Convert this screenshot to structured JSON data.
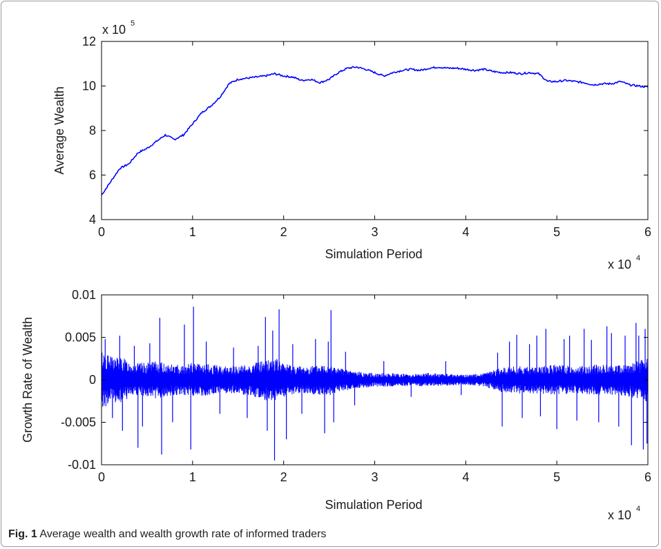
{
  "caption": {
    "label": "Fig. 1",
    "text": "Average wealth and wealth growth rate of informed traders"
  },
  "colors": {
    "line": "#0000ff",
    "axis": "#000000",
    "frame": "#9a9a9a"
  },
  "chart_data": [
    {
      "type": "line",
      "title": "",
      "xlabel": "Simulation Period",
      "ylabel": "Average Wealth",
      "x_multiplier": {
        "base": "x 10",
        "exponent": "4"
      },
      "y_multiplier": {
        "base": "x 10",
        "exponent": "5"
      },
      "xlim": [
        0,
        6
      ],
      "ylim": [
        4,
        12
      ],
      "x_ticks": [
        "0",
        "1",
        "2",
        "3",
        "4",
        "5",
        "6"
      ],
      "y_ticks": [
        "4",
        "6",
        "8",
        "10",
        "12"
      ],
      "grid": false,
      "series": [
        {
          "x": [
            0,
            0.1,
            0.2,
            0.3,
            0.4,
            0.5,
            0.6,
            0.7,
            0.8,
            0.9,
            1.0,
            1.1,
            1.2,
            1.3,
            1.4,
            1.5,
            1.6,
            1.7,
            1.8,
            1.9,
            2.0,
            2.1,
            2.2,
            2.3,
            2.4,
            2.5,
            2.6,
            2.7,
            2.8,
            2.9,
            3.0,
            3.1,
            3.2,
            3.3,
            3.4,
            3.5,
            3.6,
            3.7,
            3.8,
            3.9,
            4.0,
            4.1,
            4.2,
            4.3,
            4.4,
            4.5,
            4.6,
            4.7,
            4.8,
            4.9,
            5.0,
            5.1,
            5.2,
            5.3,
            5.4,
            5.5,
            5.6,
            5.7,
            5.8,
            5.9,
            6.0
          ],
          "y": [
            5.1,
            5.7,
            6.3,
            6.5,
            7.0,
            7.2,
            7.5,
            7.8,
            7.6,
            7.8,
            8.3,
            8.8,
            9.1,
            9.5,
            10.1,
            10.3,
            10.35,
            10.4,
            10.45,
            10.55,
            10.45,
            10.4,
            10.25,
            10.3,
            10.15,
            10.3,
            10.6,
            10.8,
            10.85,
            10.75,
            10.6,
            10.45,
            10.6,
            10.7,
            10.75,
            10.7,
            10.8,
            10.85,
            10.8,
            10.8,
            10.75,
            10.7,
            10.75,
            10.65,
            10.6,
            10.6,
            10.55,
            10.6,
            10.55,
            10.2,
            10.2,
            10.25,
            10.2,
            10.15,
            10.05,
            10.1,
            10.1,
            10.2,
            10.05,
            10.0,
            9.95
          ]
        }
      ]
    },
    {
      "type": "line",
      "title": "",
      "xlabel": "Simulation Period",
      "ylabel": "Growth Rate of Wealth",
      "x_multiplier": {
        "base": "x 10",
        "exponent": "4"
      },
      "xlim": [
        0,
        6
      ],
      "ylim": [
        -0.01,
        0.01
      ],
      "x_ticks": [
        "0",
        "1",
        "2",
        "3",
        "4",
        "5",
        "6"
      ],
      "y_ticks": [
        "-0.01",
        "-0.005",
        "0",
        "0.005",
        "0.01"
      ],
      "grid": false,
      "envelope": {
        "x": [
          0,
          0.1,
          0.2,
          0.3,
          0.4,
          0.5,
          0.6,
          0.7,
          0.8,
          0.9,
          1.0,
          1.2,
          1.4,
          1.6,
          1.8,
          1.9,
          2.0,
          2.2,
          2.4,
          2.5,
          2.6,
          2.8,
          3.0,
          3.2,
          3.4,
          3.6,
          3.8,
          4.0,
          4.2,
          4.4,
          4.6,
          4.8,
          5.0,
          5.2,
          5.4,
          5.6,
          5.8,
          6.0
        ],
        "amplitude": [
          0.0035,
          0.0028,
          0.0028,
          0.0022,
          0.002,
          0.002,
          0.0022,
          0.002,
          0.0018,
          0.0018,
          0.002,
          0.0018,
          0.0016,
          0.0018,
          0.0024,
          0.0026,
          0.002,
          0.0016,
          0.0018,
          0.002,
          0.0014,
          0.001,
          0.0008,
          0.0008,
          0.0007,
          0.0008,
          0.0007,
          0.0006,
          0.0008,
          0.0015,
          0.0016,
          0.0016,
          0.0018,
          0.0016,
          0.0018,
          0.0018,
          0.002,
          0.0026
        ]
      },
      "spikes": [
        {
          "x": 0.04,
          "y": 0.0048
        },
        {
          "x": 0.12,
          "y": -0.0045
        },
        {
          "x": 0.2,
          "y": 0.0052
        },
        {
          "x": 0.23,
          "y": -0.006
        },
        {
          "x": 0.36,
          "y": 0.004
        },
        {
          "x": 0.4,
          "y": -0.008
        },
        {
          "x": 0.45,
          "y": -0.0055
        },
        {
          "x": 0.53,
          "y": 0.0043
        },
        {
          "x": 0.64,
          "y": 0.0073
        },
        {
          "x": 0.66,
          "y": -0.0088
        },
        {
          "x": 0.78,
          "y": -0.005
        },
        {
          "x": 0.91,
          "y": 0.0065
        },
        {
          "x": 0.98,
          "y": -0.0082
        },
        {
          "x": 1.01,
          "y": 0.0086
        },
        {
          "x": 1.15,
          "y": 0.0045
        },
        {
          "x": 1.3,
          "y": -0.004
        },
        {
          "x": 1.45,
          "y": 0.0038
        },
        {
          "x": 1.6,
          "y": -0.0045
        },
        {
          "x": 1.72,
          "y": 0.004
        },
        {
          "x": 1.8,
          "y": 0.0074
        },
        {
          "x": 1.82,
          "y": -0.006
        },
        {
          "x": 1.88,
          "y": 0.0058
        },
        {
          "x": 1.9,
          "y": -0.0095
        },
        {
          "x": 1.95,
          "y": 0.0083
        },
        {
          "x": 2.03,
          "y": -0.007
        },
        {
          "x": 2.1,
          "y": 0.0042
        },
        {
          "x": 2.2,
          "y": -0.004
        },
        {
          "x": 2.35,
          "y": 0.0048
        },
        {
          "x": 2.45,
          "y": -0.0063
        },
        {
          "x": 2.49,
          "y": 0.0045
        },
        {
          "x": 2.52,
          "y": 0.0082
        },
        {
          "x": 2.55,
          "y": -0.005
        },
        {
          "x": 2.68,
          "y": 0.0033
        },
        {
          "x": 2.78,
          "y": -0.003
        },
        {
          "x": 3.1,
          "y": 0.0022
        },
        {
          "x": 3.4,
          "y": -0.002
        },
        {
          "x": 3.78,
          "y": 0.0022
        },
        {
          "x": 3.95,
          "y": -0.0018
        },
        {
          "x": 4.35,
          "y": 0.0032
        },
        {
          "x": 4.4,
          "y": -0.0055
        },
        {
          "x": 4.48,
          "y": 0.0045
        },
        {
          "x": 4.56,
          "y": 0.0053
        },
        {
          "x": 4.62,
          "y": -0.0045
        },
        {
          "x": 4.7,
          "y": 0.0042
        },
        {
          "x": 4.78,
          "y": 0.0052
        },
        {
          "x": 4.82,
          "y": -0.0043
        },
        {
          "x": 4.88,
          "y": 0.006
        },
        {
          "x": 5.0,
          "y": -0.0058
        },
        {
          "x": 5.08,
          "y": 0.0048
        },
        {
          "x": 5.14,
          "y": 0.0052
        },
        {
          "x": 5.22,
          "y": -0.0048
        },
        {
          "x": 5.3,
          "y": 0.006
        },
        {
          "x": 5.38,
          "y": 0.0047
        },
        {
          "x": 5.46,
          "y": -0.005
        },
        {
          "x": 5.55,
          "y": 0.0063
        },
        {
          "x": 5.6,
          "y": 0.0055
        },
        {
          "x": 5.68,
          "y": -0.0055
        },
        {
          "x": 5.75,
          "y": 0.0052
        },
        {
          "x": 5.82,
          "y": -0.0077
        },
        {
          "x": 5.87,
          "y": 0.0067
        },
        {
          "x": 5.9,
          "y": 0.0052
        },
        {
          "x": 5.95,
          "y": -0.0082
        },
        {
          "x": 5.97,
          "y": 0.006
        },
        {
          "x": 5.99,
          "y": -0.0075
        }
      ]
    }
  ]
}
